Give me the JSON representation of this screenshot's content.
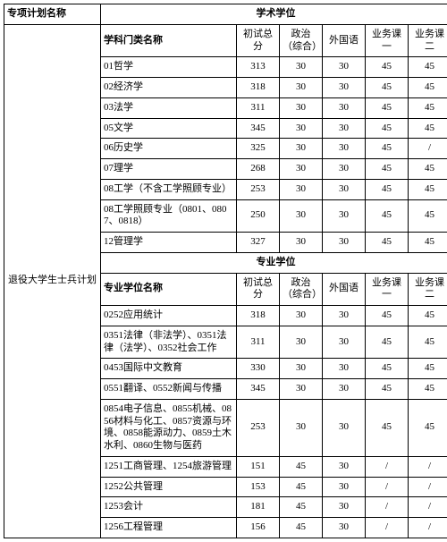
{
  "header": {
    "plan_name_label": "专项计划名称",
    "academic_degree_label": "学术学位",
    "professional_degree_label": "专业学位"
  },
  "plan_name": "退役大学生士兵计划",
  "cols": {
    "subject_label_academic": "学科门类名称",
    "subject_label_professional": "专业学位名称",
    "score_total": "初试总分",
    "politics": "政治（综合）",
    "foreign": "外国语",
    "b1": "业务课一",
    "b2": "业务课二"
  },
  "academic_rows": [
    {
      "name": "01哲学",
      "total": "313",
      "pol": "30",
      "for": "30",
      "b1": "45",
      "b2": "45"
    },
    {
      "name": "02经济学",
      "total": "318",
      "pol": "30",
      "for": "30",
      "b1": "45",
      "b2": "45"
    },
    {
      "name": "03法学",
      "total": "311",
      "pol": "30",
      "for": "30",
      "b1": "45",
      "b2": "45"
    },
    {
      "name": "05文学",
      "total": "345",
      "pol": "30",
      "for": "30",
      "b1": "45",
      "b2": "45"
    },
    {
      "name": "06历史学",
      "total": "325",
      "pol": "30",
      "for": "30",
      "b1": "45",
      "b2": "/"
    },
    {
      "name": "07理学",
      "total": "268",
      "pol": "30",
      "for": "30",
      "b1": "45",
      "b2": "45"
    },
    {
      "name": "08工学（不含工学照顾专业）",
      "total": "253",
      "pol": "30",
      "for": "30",
      "b1": "45",
      "b2": "45"
    },
    {
      "name": "08工学照顾专业（0801、0807、0818）",
      "total": "250",
      "pol": "30",
      "for": "30",
      "b1": "45",
      "b2": "45"
    },
    {
      "name": "12管理学",
      "total": "327",
      "pol": "30",
      "for": "30",
      "b1": "45",
      "b2": "45"
    }
  ],
  "professional_rows": [
    {
      "name": "0252应用统计",
      "total": "318",
      "pol": "30",
      "for": "30",
      "b1": "45",
      "b2": "45"
    },
    {
      "name": "0351法律（非法学）、0351法律（法学）、0352社会工作",
      "total": "311",
      "pol": "30",
      "for": "30",
      "b1": "45",
      "b2": "45"
    },
    {
      "name": "0453国际中文教育",
      "total": "330",
      "pol": "30",
      "for": "30",
      "b1": "45",
      "b2": "45"
    },
    {
      "name": "0551翻译、0552新闻与传播",
      "total": "345",
      "pol": "30",
      "for": "30",
      "b1": "45",
      "b2": "45"
    },
    {
      "name": "0854电子信息、0855机械、0856材料与化工、0857资源与环境、0858能源动力、0859土木水利、0860生物与医药",
      "total": "253",
      "pol": "30",
      "for": "30",
      "b1": "45",
      "b2": "45"
    },
    {
      "name": "1251工商管理、1254旅游管理",
      "total": "151",
      "pol": "45",
      "for": "30",
      "b1": "/",
      "b2": "/"
    },
    {
      "name": "1252公共管理",
      "total": "153",
      "pol": "45",
      "for": "30",
      "b1": "/",
      "b2": "/"
    },
    {
      "name": "1253会计",
      "total": "181",
      "pol": "45",
      "for": "30",
      "b1": "/",
      "b2": "/"
    },
    {
      "name": "1256工程管理",
      "total": "156",
      "pol": "45",
      "for": "30",
      "b1": "/",
      "b2": "/"
    }
  ]
}
